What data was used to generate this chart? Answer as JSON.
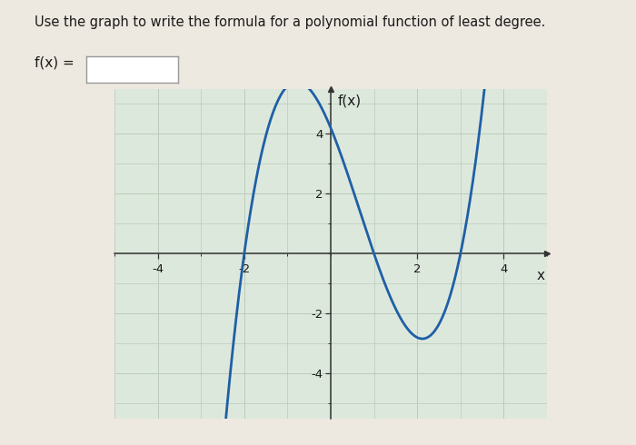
{
  "title_text": "Use the graph to write the formula for a polynomial function of least degree.",
  "fx_label": "f(x) =",
  "axis_label_x": "x",
  "axis_label_fx": "f(x)",
  "xlim": [
    -5.0,
    5.0
  ],
  "ylim": [
    -5.5,
    5.5
  ],
  "x_ticks": [
    -4,
    -2,
    2,
    4
  ],
  "y_ticks": [
    -4,
    -2,
    2,
    4
  ],
  "x_minor": [
    -5,
    -4,
    -3,
    -2,
    -1,
    0,
    1,
    2,
    3,
    4,
    5
  ],
  "y_minor": [
    -5,
    -4,
    -3,
    -2,
    -1,
    0,
    1,
    2,
    3,
    4,
    5
  ],
  "roots": [
    -2,
    1,
    3
  ],
  "leading_coeff": 0.7,
  "line_color": "#1f5fa6",
  "line_width": 2.0,
  "bg_color": "#ede8e0",
  "plot_bg": "#dde8dd",
  "grid_color": "#b8ccb8",
  "grid_lw": 0.7,
  "axis_color": "#333333",
  "text_color": "#1a1a1a",
  "input_box_color": "#ffffff",
  "input_box_border": "#999999",
  "title_fontsize": 10.5,
  "label_fontsize": 10,
  "tick_fontsize": 9.5
}
